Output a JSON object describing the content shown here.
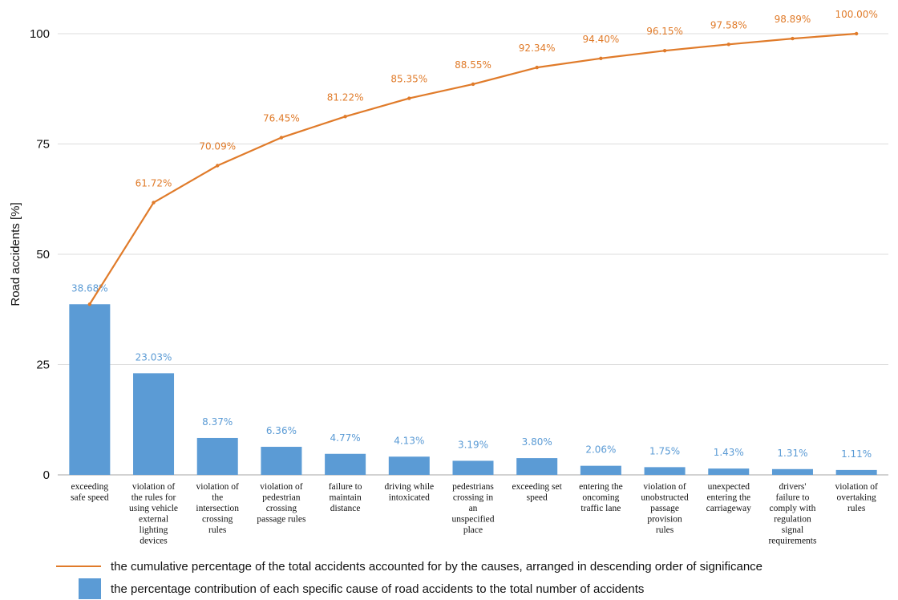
{
  "chart_data": {
    "type": "bar",
    "ylabel": "Road accidents [%]",
    "ylim": [
      0,
      100
    ],
    "yticks": [
      0,
      25,
      50,
      75,
      100
    ],
    "grid": true,
    "categories": [
      [
        "exceeding",
        "safe speed"
      ],
      [
        "violation of",
        "the rules for",
        "using vehicle",
        "external",
        "lighting",
        "devices"
      ],
      [
        "violation of",
        "the",
        "intersection",
        "crossing",
        "rules"
      ],
      [
        "violation of",
        "pedestrian",
        "crossing",
        "passage rules"
      ],
      [
        "failure to",
        "maintain",
        "distance"
      ],
      [
        "driving while",
        "intoxicated"
      ],
      [
        "pedestrians",
        "crossing in",
        "an",
        "unspecified",
        "place"
      ],
      [
        "exceeding set",
        "speed"
      ],
      [
        "entering the",
        "oncoming",
        "traffic lane"
      ],
      [
        "violation of",
        "unobstructed",
        "passage",
        "provision",
        "rules"
      ],
      [
        "unexpected",
        "entering the",
        "carriageway"
      ],
      [
        "drivers'",
        "failure to",
        "comply with",
        "regulation",
        "signal",
        "requirements"
      ],
      [
        "violation of",
        "overtaking",
        "rules"
      ]
    ],
    "series": [
      {
        "kind": "bar",
        "values": [
          38.68,
          23.03,
          8.37,
          6.36,
          4.77,
          4.13,
          3.19,
          3.8,
          2.06,
          1.75,
          1.43,
          1.31,
          1.11
        ],
        "labels": [
          "38.68%",
          "23.03%",
          "8.37%",
          "6.36%",
          "4.77%",
          "4.13%",
          "3.19%",
          "3.80%",
          "2.06%",
          "1.75%",
          "1.43%",
          "1.31%",
          "1.11%"
        ],
        "color": "#5b9bd5"
      },
      {
        "kind": "line",
        "values": [
          38.68,
          61.72,
          70.09,
          76.45,
          81.22,
          85.35,
          88.55,
          92.34,
          94.4,
          96.15,
          97.58,
          98.89,
          100.0
        ],
        "labels": [
          "",
          "61.72%",
          "70.09%",
          "76.45%",
          "81.22%",
          "85.35%",
          "88.55%",
          "92.34%",
          "94.40%",
          "96.15%",
          "97.58%",
          "98.89%",
          "100.00%"
        ],
        "color": "#e07b2a"
      }
    ],
    "legend": [
      {
        "swatch": "line",
        "color": "#e07b2a",
        "text": "the cumulative percentage of the total accidents accounted for by the causes, arranged in descending order of significance"
      },
      {
        "swatch": "box",
        "color": "#5b9bd5",
        "text": "the percentage contribution of each specific cause of road accidents to the total number of accidents"
      }
    ],
    "legend_position": "bottom-left"
  }
}
